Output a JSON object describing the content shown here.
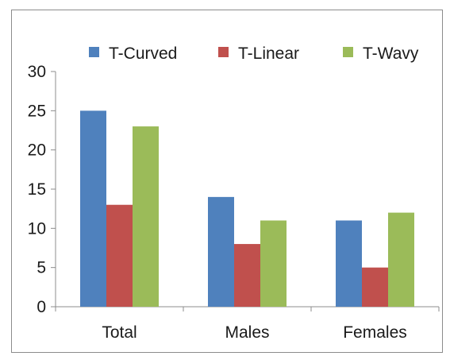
{
  "chart_data": {
    "type": "bar",
    "categories": [
      "Total",
      "Males",
      "Females"
    ],
    "series": [
      {
        "name": "T-Curved",
        "color": "#4f81bd",
        "values": [
          25,
          14,
          11
        ]
      },
      {
        "name": "T-Linear",
        "color": "#c0504d",
        "values": [
          13,
          8,
          5
        ]
      },
      {
        "name": "T-Wavy",
        "color": "#9bbb59",
        "values": [
          23,
          11,
          12
        ]
      }
    ],
    "title": "",
    "xlabel": "",
    "ylabel": "",
    "ylim": [
      0,
      30
    ],
    "yticks": [
      0,
      5,
      10,
      15,
      20,
      25,
      30
    ],
    "grid": false,
    "legend_position": "top"
  }
}
